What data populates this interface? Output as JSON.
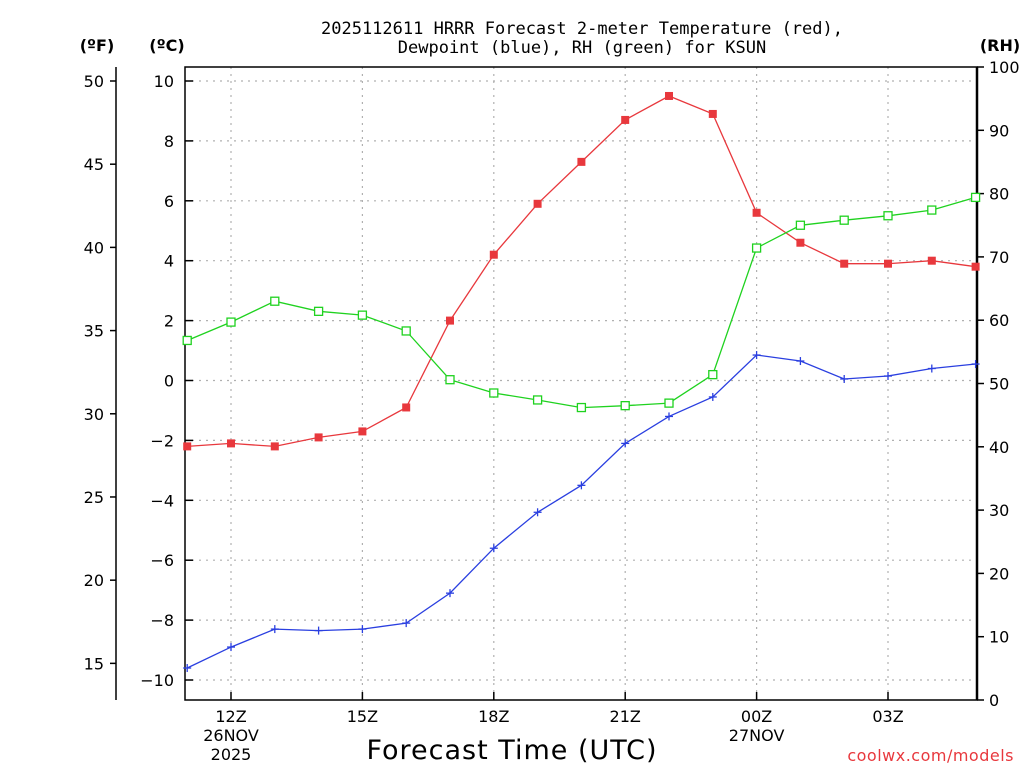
{
  "chart_data": {
    "type": "line",
    "title_line1": "2025112611 HRRR Forecast 2-meter Temperature (red),",
    "title_line2": "Dewpoint (blue), RH (green) for KSUN",
    "unit_f": "(ºF)",
    "unit_c": "(ºC)",
    "unit_rh": "(RH)",
    "xlabel": "Forecast Time (UTC)",
    "credit": "coolwx.com/models",
    "x_hours": [
      11,
      12,
      13,
      14,
      15,
      16,
      17,
      18,
      19,
      20,
      21,
      22,
      23,
      24,
      25,
      26,
      27,
      28,
      29
    ],
    "x_ticks": [
      {
        "hour": 12,
        "label": "12Z",
        "sub1": "26NOV",
        "sub2": "2025"
      },
      {
        "hour": 15,
        "label": "15Z",
        "sub1": "",
        "sub2": ""
      },
      {
        "hour": 18,
        "label": "18Z",
        "sub1": "",
        "sub2": ""
      },
      {
        "hour": 21,
        "label": "21Z",
        "sub1": "",
        "sub2": ""
      },
      {
        "hour": 24,
        "label": "00Z",
        "sub1": "27NOV",
        "sub2": ""
      },
      {
        "hour": 27,
        "label": "03Z",
        "sub1": "",
        "sub2": ""
      }
    ],
    "xlim": [
      11,
      29
    ],
    "celsius_axis": {
      "ylim": [
        -10.5,
        10.5
      ],
      "ticks": [
        -10,
        -8,
        -6,
        -4,
        -2,
        0,
        2,
        4,
        6,
        8,
        10
      ],
      "labels": [
        "−10",
        "−8",
        "−6",
        "−4",
        "−2",
        "0",
        "2",
        "4",
        "6",
        "8",
        "10"
      ]
    },
    "fahrenheit_axis": {
      "ticks": [
        15,
        20,
        25,
        30,
        35,
        40,
        45,
        50
      ],
      "labels": [
        "15",
        "20",
        "25",
        "30",
        "35",
        "40",
        "45",
        "50"
      ]
    },
    "rh_axis": {
      "ylim": [
        0,
        100
      ],
      "ticks": [
        0,
        10,
        20,
        30,
        40,
        50,
        60,
        70,
        80,
        90,
        100
      ],
      "labels": [
        "0",
        "10",
        "20",
        "30",
        "40",
        "50",
        "60",
        "70",
        "80",
        "90",
        "100"
      ]
    },
    "series": [
      {
        "name": "Temperature",
        "axis": "celsius",
        "color": "#e8383d",
        "marker": "filled-square",
        "values": [
          -2.2,
          -2.1,
          -2.2,
          -1.9,
          -1.7,
          -0.9,
          2.0,
          4.2,
          5.9,
          7.3,
          8.7,
          9.5,
          8.9,
          5.6,
          4.6,
          3.9,
          3.9,
          4.0,
          3.8
        ]
      },
      {
        "name": "Dewpoint",
        "axis": "celsius",
        "color": "#2a3fe0",
        "marker": "plus",
        "values": [
          -9.6,
          -8.9,
          -8.3,
          -8.35,
          -8.3,
          -8.1,
          -7.1,
          -5.6,
          -4.4,
          -3.5,
          -2.1,
          -1.2,
          -0.55,
          0.85,
          0.65,
          0.05,
          0.15,
          0.4,
          0.55
        ]
      },
      {
        "name": "RH",
        "axis": "rh",
        "color": "#1fd21f",
        "marker": "open-square",
        "values": [
          56.8,
          59.7,
          63.0,
          61.4,
          60.8,
          58.3,
          50.6,
          48.5,
          47.4,
          46.2,
          46.5,
          46.9,
          51.4,
          71.4,
          75.0,
          75.8,
          76.5,
          77.4,
          79.4
        ]
      }
    ]
  }
}
